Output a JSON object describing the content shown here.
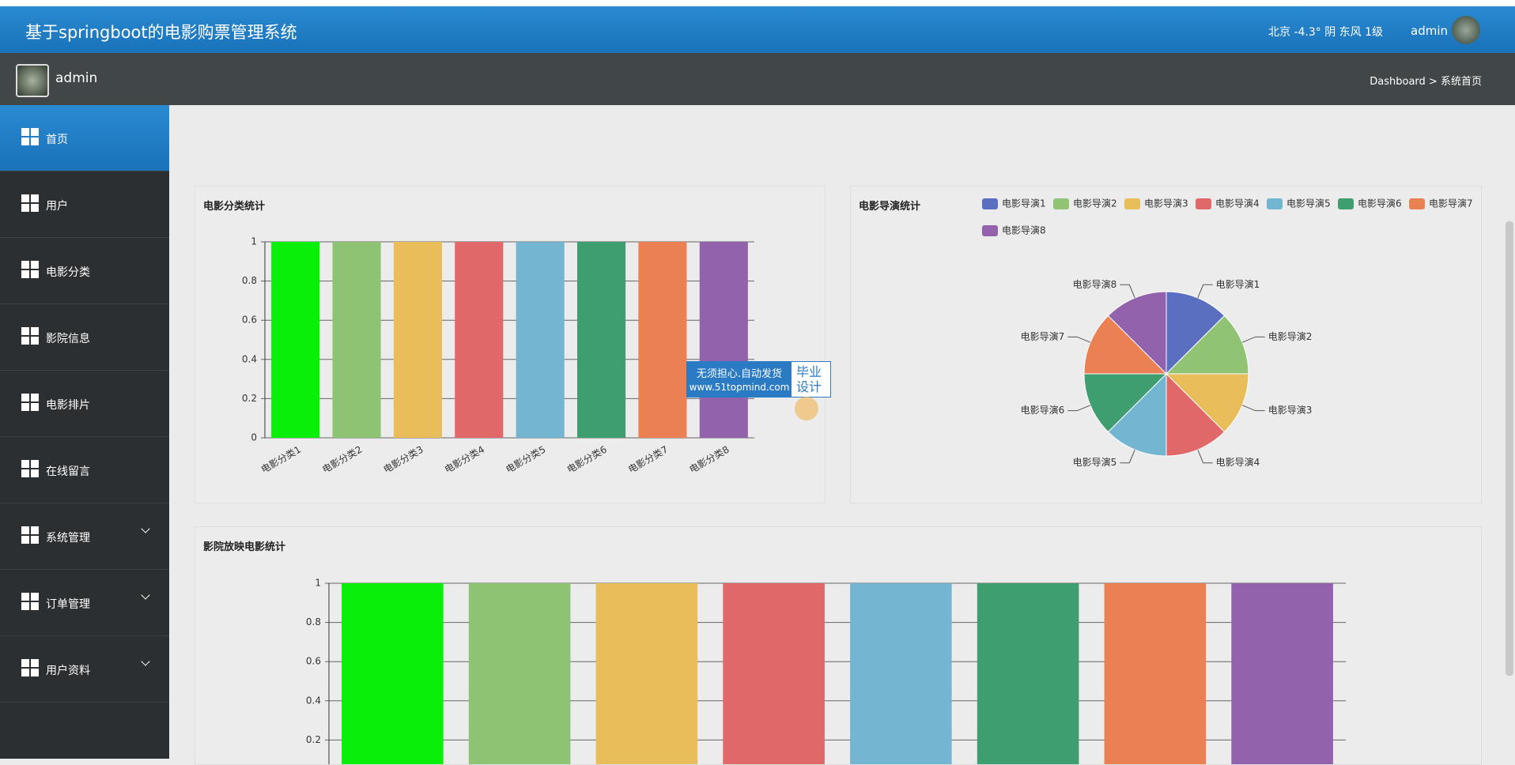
{
  "header": {
    "title": "基于springboot的电影购票管理系统",
    "weather": "北京 -4.3° 阴 东风 1级",
    "user": "admin"
  },
  "subheader": {
    "user": "admin",
    "breadcrumb": [
      "Dashboard",
      "系统首页"
    ],
    "separator": ">"
  },
  "menu": [
    {
      "label": "首页",
      "active": true
    },
    {
      "label": "用户"
    },
    {
      "label": "电影分类"
    },
    {
      "label": "影院信息"
    },
    {
      "label": "电影排片"
    },
    {
      "label": "在线留言"
    },
    {
      "label": "系统管理",
      "submenu": true
    },
    {
      "label": "订单管理",
      "submenu": true
    },
    {
      "label": "用户资料",
      "submenu": true
    }
  ],
  "chart_data": [
    {
      "type": "bar",
      "title": "电影分类统计",
      "categories": [
        "电影分类1",
        "电影分类2",
        "电影分类3",
        "电影分类4",
        "电影分类5",
        "电影分类6",
        "电影分类7",
        "电影分类8"
      ],
      "values": [
        1,
        1,
        1,
        1,
        1,
        1,
        1,
        1
      ],
      "colors": [
        "#0aef0a",
        "#8fc374",
        "#e9bd5a",
        "#e06868",
        "#74b6d2",
        "#3f9e6f",
        "#eb8152",
        "#9262ad"
      ],
      "ylim": [
        0,
        1
      ],
      "yticks": [
        0,
        0.2,
        0.4,
        0.6,
        0.8,
        1
      ],
      "grid": true
    },
    {
      "type": "pie",
      "title": "电影导演统计",
      "categories": [
        "电影导演1",
        "电影导演2",
        "电影导演3",
        "电影导演4",
        "电影导演5",
        "电影导演6",
        "电影导演7",
        "电影导演8"
      ],
      "values": [
        1,
        1,
        1,
        1,
        1,
        1,
        1,
        1
      ],
      "colors": [
        "#5a6fc0",
        "#91c375",
        "#e9bd5a",
        "#e06868",
        "#74b6d2",
        "#3f9e6f",
        "#eb8152",
        "#9262ad"
      ],
      "legend": "top-right"
    },
    {
      "type": "bar",
      "title": "影院放映电影统计",
      "values": [
        1,
        1,
        1,
        1,
        1,
        1,
        1,
        1
      ],
      "colors": [
        "#0aef0a",
        "#8fc374",
        "#e9bd5a",
        "#e06868",
        "#74b6d2",
        "#3f9e6f",
        "#eb8152",
        "#9262ad"
      ],
      "ylim": [
        0,
        1
      ],
      "yticks": [
        0.2,
        0.4,
        0.6,
        0.8,
        1
      ],
      "grid": true
    }
  ],
  "watermark": {
    "line1": "无须担心.自动发货",
    "line2": "www.51topmind.com",
    "badge1": "毕业",
    "badge2": "设计"
  }
}
